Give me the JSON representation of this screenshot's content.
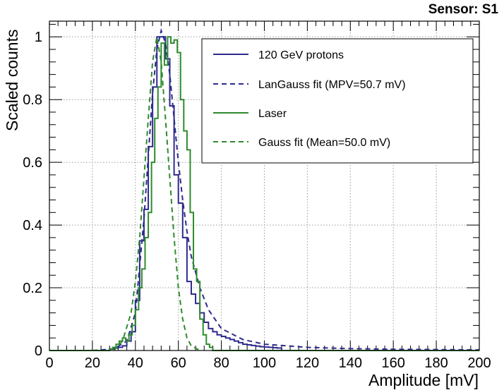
{
  "chart_data": {
    "type": "line",
    "title": "Sensor: S1",
    "xlabel": "Amplitude [mV]",
    "ylabel": "Scaled counts",
    "xlim": [
      0,
      200
    ],
    "ylim": [
      0,
      1.05
    ],
    "grid": true,
    "legend_position": "top-right",
    "x_ticks": [
      0,
      20,
      40,
      60,
      80,
      100,
      120,
      140,
      160,
      180,
      200
    ],
    "y_ticks": [
      0,
      0.2,
      0.4,
      0.6,
      0.8,
      1
    ],
    "y_tick_labels": [
      "0",
      "0.2",
      "0.4",
      "0.6",
      "0.8",
      "1"
    ],
    "series": [
      {
        "name": "120 GeV protons",
        "style": "step",
        "color": "#2e2a8c",
        "bin_width": 2,
        "x_start": 28,
        "values": [
          0.005,
          0.008,
          0.01,
          0.015,
          0.03,
          0.06,
          0.16,
          0.35,
          0.45,
          0.65,
          0.84,
          1.0,
          1.0,
          0.93,
          0.78,
          0.56,
          0.47,
          0.36,
          0.22,
          0.18,
          0.15,
          0.12,
          0.09,
          0.07,
          0.06,
          0.05,
          0.045,
          0.04,
          0.035,
          0.03,
          0.025,
          0.02,
          0.018,
          0.016,
          0.014,
          0.012,
          0.011,
          0.01,
          0.009,
          0.008
        ]
      },
      {
        "name": "LanGauss fit (MPV=50.7 mV)",
        "style": "dashed",
        "color": "#2e2a8c",
        "x": [
          20,
          30,
          36,
          40,
          44,
          46,
          48,
          50,
          52,
          54,
          56,
          58,
          60,
          62,
          64,
          66,
          70,
          74,
          80,
          90,
          100,
          120,
          140,
          160,
          180,
          200
        ],
        "values": [
          0.0,
          0.005,
          0.03,
          0.12,
          0.42,
          0.62,
          0.82,
          0.96,
          1.02,
          0.98,
          0.88,
          0.74,
          0.6,
          0.48,
          0.38,
          0.3,
          0.2,
          0.13,
          0.07,
          0.035,
          0.02,
          0.01,
          0.006,
          0.004,
          0.003,
          0.002
        ]
      },
      {
        "name": "Laser",
        "style": "step",
        "color": "#2e8b2e",
        "bin_width": 1.5,
        "x_start": 28,
        "values": [
          0.005,
          0.01,
          0.02,
          0.03,
          0.04,
          0.03,
          0.05,
          0.08,
          0.13,
          0.2,
          0.26,
          0.36,
          0.44,
          0.6,
          0.74,
          0.84,
          0.98,
          0.91,
          1.0,
          0.98,
          0.99,
          0.95,
          0.8,
          0.7,
          0.64,
          0.44,
          0.26,
          0.22,
          0.1,
          0.05,
          0.02,
          0.01,
          0.0
        ]
      },
      {
        "name": "Gauss fit (Mean=50.0 mV)",
        "style": "dashed",
        "color": "#2e8b2e",
        "x": [
          30,
          34,
          38,
          40,
          42,
          44,
          46,
          48,
          50,
          52,
          54,
          56,
          58,
          60,
          62,
          64,
          66,
          70
        ],
        "values": [
          0.0,
          0.03,
          0.12,
          0.22,
          0.36,
          0.55,
          0.74,
          0.92,
          1.0,
          0.92,
          0.74,
          0.55,
          0.36,
          0.2,
          0.1,
          0.04,
          0.015,
          0.0
        ]
      }
    ]
  }
}
